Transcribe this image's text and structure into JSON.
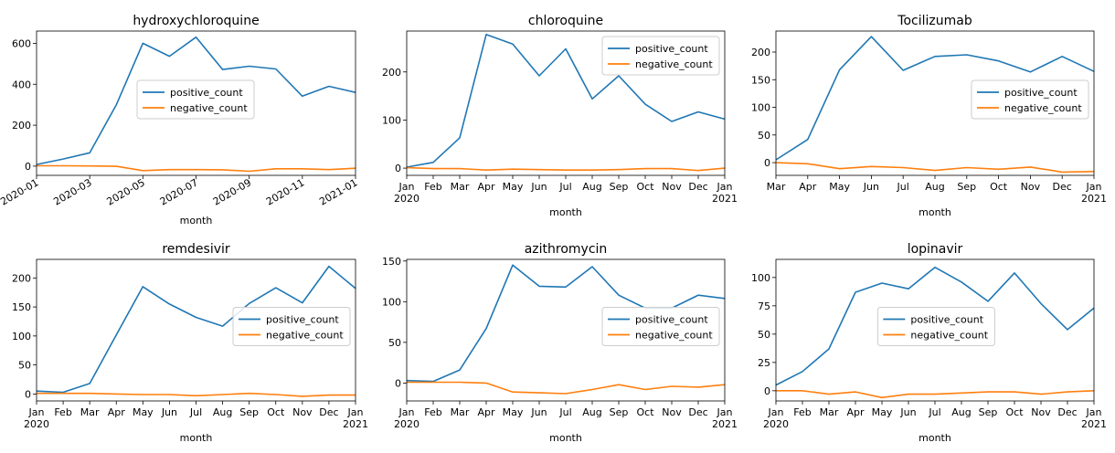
{
  "colors": {
    "positive": "#1f77b4",
    "negative": "#ff7f0e"
  },
  "legend_labels": [
    "positive_count",
    "negative_count"
  ],
  "chart_data": [
    {
      "type": "line",
      "title": "hydroxychloroquine",
      "xlabel": "month",
      "x": [
        0,
        1,
        2,
        3,
        4,
        5,
        6,
        7,
        8,
        9,
        10,
        11,
        12
      ],
      "xlim": [
        0,
        12
      ],
      "ylim": [
        -45,
        660
      ],
      "yticks": [
        0,
        200,
        400,
        600
      ],
      "xticks": [
        {
          "v": 0,
          "label": "2020-01"
        },
        {
          "v": 2,
          "label": "2020-03"
        },
        {
          "v": 4,
          "label": "2020-05"
        },
        {
          "v": 6,
          "label": "2020-07"
        },
        {
          "v": 8,
          "label": "2020-09"
        },
        {
          "v": 10,
          "label": "2020-11"
        },
        {
          "v": 12,
          "label": "2021-01"
        }
      ],
      "series": [
        {
          "name": "positive_count",
          "values": [
            8,
            35,
            65,
            300,
            600,
            537,
            630,
            472,
            488,
            475,
            342,
            390,
            360
          ]
        },
        {
          "name": "negative_count",
          "values": [
            2,
            2,
            1,
            -1,
            -22,
            -17,
            -17,
            -18,
            -25,
            -13,
            -13,
            -17,
            -10
          ]
        }
      ],
      "legend": "center-right"
    },
    {
      "type": "line",
      "title": "chloroquine",
      "xlabel": "month",
      "x": [
        0,
        1,
        2,
        3,
        4,
        5,
        6,
        7,
        8,
        9,
        10,
        11,
        12
      ],
      "xlim": [
        0,
        12
      ],
      "ylim": [
        -15,
        285
      ],
      "yticks": [
        0,
        100,
        200
      ],
      "xticks": [
        {
          "v": 0,
          "label": "Jan",
          "sub": "2020"
        },
        {
          "v": 1,
          "label": "Feb"
        },
        {
          "v": 2,
          "label": "Mar"
        },
        {
          "v": 3,
          "label": "Apr"
        },
        {
          "v": 4,
          "label": "May"
        },
        {
          "v": 5,
          "label": "Jun"
        },
        {
          "v": 6,
          "label": "Jul"
        },
        {
          "v": 7,
          "label": "Aug"
        },
        {
          "v": 8,
          "label": "Sep"
        },
        {
          "v": 9,
          "label": "Oct"
        },
        {
          "v": 10,
          "label": "Nov"
        },
        {
          "v": 11,
          "label": "Dec"
        },
        {
          "v": 12,
          "label": "Jan",
          "sub": "2021"
        }
      ],
      "series": [
        {
          "name": "positive_count",
          "values": [
            2,
            12,
            63,
            278,
            258,
            192,
            248,
            144,
            192,
            133,
            97,
            117,
            102
          ]
        },
        {
          "name": "negative_count",
          "values": [
            1,
            -1,
            -1,
            -4,
            -2,
            -3,
            -4,
            -4,
            -3,
            -1,
            -1,
            -5,
            0
          ]
        }
      ],
      "legend": "top-right"
    },
    {
      "type": "line",
      "title": "Tocilizumab",
      "xlabel": "month",
      "x": [
        2,
        3,
        4,
        5,
        6,
        7,
        8,
        9,
        10,
        11,
        12
      ],
      "xlim": [
        2,
        12
      ],
      "ylim": [
        -23,
        238
      ],
      "yticks": [
        0,
        50,
        100,
        150,
        200
      ],
      "xticks": [
        {
          "v": 2,
          "label": "Mar"
        },
        {
          "v": 3,
          "label": "Apr"
        },
        {
          "v": 4,
          "label": "May"
        },
        {
          "v": 5,
          "label": "Jun"
        },
        {
          "v": 6,
          "label": "Jul"
        },
        {
          "v": 7,
          "label": "Aug"
        },
        {
          "v": 8,
          "label": "Sep"
        },
        {
          "v": 9,
          "label": "Oct"
        },
        {
          "v": 10,
          "label": "Nov"
        },
        {
          "v": 11,
          "label": "Dec"
        },
        {
          "v": 12,
          "label": "Jan",
          "sub": "2021"
        }
      ],
      "series": [
        {
          "name": "positive_count",
          "values": [
            5,
            42,
            168,
            228,
            167,
            192,
            195,
            184,
            164,
            192,
            165
          ]
        },
        {
          "name": "negative_count",
          "values": [
            0,
            -2,
            -11,
            -7,
            -9,
            -14,
            -9,
            -12,
            -8,
            -17,
            -16
          ]
        }
      ],
      "legend": "center-right"
    },
    {
      "type": "line",
      "title": "remdesivir",
      "xlabel": "month",
      "x": [
        0,
        1,
        2,
        3,
        4,
        5,
        6,
        7,
        8,
        9,
        10,
        11,
        12
      ],
      "xlim": [
        0,
        12
      ],
      "ylim": [
        -12,
        232
      ],
      "yticks": [
        0,
        50,
        100,
        150,
        200
      ],
      "xticks": [
        {
          "v": 0,
          "label": "Jan",
          "sub": "2020"
        },
        {
          "v": 1,
          "label": "Feb"
        },
        {
          "v": 2,
          "label": "Mar"
        },
        {
          "v": 3,
          "label": "Apr"
        },
        {
          "v": 4,
          "label": "May"
        },
        {
          "v": 5,
          "label": "Jun"
        },
        {
          "v": 6,
          "label": "Jul"
        },
        {
          "v": 7,
          "label": "Aug"
        },
        {
          "v": 8,
          "label": "Sep"
        },
        {
          "v": 9,
          "label": "Oct"
        },
        {
          "v": 10,
          "label": "Nov"
        },
        {
          "v": 11,
          "label": "Dec"
        },
        {
          "v": 12,
          "label": "Jan",
          "sub": "2021"
        }
      ],
      "series": [
        {
          "name": "positive_count",
          "values": [
            5,
            3,
            18,
            102,
            185,
            155,
            132,
            117,
            156,
            183,
            157,
            220,
            182
          ]
        },
        {
          "name": "negative_count",
          "values": [
            1,
            1,
            1,
            0,
            -1,
            -1,
            -3,
            -1,
            1,
            -1,
            -4,
            -2,
            -2
          ]
        }
      ],
      "legend": "center-right"
    },
    {
      "type": "line",
      "title": "azithromycin",
      "xlabel": "month",
      "x": [
        0,
        1,
        2,
        3,
        4,
        5,
        6,
        7,
        8,
        9,
        10,
        11,
        12
      ],
      "xlim": [
        0,
        12
      ],
      "ylim": [
        -22,
        152
      ],
      "yticks": [
        0,
        50,
        100,
        150
      ],
      "xticks": [
        {
          "v": 0,
          "label": "Jan",
          "sub": "2020"
        },
        {
          "v": 1,
          "label": "Feb"
        },
        {
          "v": 2,
          "label": "Mar"
        },
        {
          "v": 3,
          "label": "Apr"
        },
        {
          "v": 4,
          "label": "May"
        },
        {
          "v": 5,
          "label": "Jun"
        },
        {
          "v": 6,
          "label": "Jul"
        },
        {
          "v": 7,
          "label": "Aug"
        },
        {
          "v": 8,
          "label": "Sep"
        },
        {
          "v": 9,
          "label": "Oct"
        },
        {
          "v": 10,
          "label": "Nov"
        },
        {
          "v": 11,
          "label": "Dec"
        },
        {
          "v": 12,
          "label": "Jan",
          "sub": "2021"
        }
      ],
      "series": [
        {
          "name": "positive_count",
          "values": [
            3,
            2,
            16,
            67,
            145,
            119,
            118,
            143,
            108,
            92,
            92,
            108,
            104
          ]
        },
        {
          "name": "negative_count",
          "values": [
            1,
            1,
            1,
            0,
            -11,
            -12,
            -13,
            -8,
            -2,
            -8,
            -4,
            -5,
            -2
          ]
        }
      ],
      "legend": "center-right"
    },
    {
      "type": "line",
      "title": "lopinavir",
      "xlabel": "month",
      "x": [
        0,
        1,
        2,
        3,
        4,
        5,
        6,
        7,
        8,
        9,
        10,
        11,
        12
      ],
      "xlim": [
        0,
        12
      ],
      "ylim": [
        -9,
        116
      ],
      "yticks": [
        0,
        25,
        50,
        75,
        100
      ],
      "xticks": [
        {
          "v": 0,
          "label": "Jan",
          "sub": "2020"
        },
        {
          "v": 1,
          "label": "Feb"
        },
        {
          "v": 2,
          "label": "Mar"
        },
        {
          "v": 3,
          "label": "Apr"
        },
        {
          "v": 4,
          "label": "May"
        },
        {
          "v": 5,
          "label": "Jun"
        },
        {
          "v": 6,
          "label": "Jul"
        },
        {
          "v": 7,
          "label": "Aug"
        },
        {
          "v": 8,
          "label": "Sep"
        },
        {
          "v": 9,
          "label": "Oct"
        },
        {
          "v": 10,
          "label": "Nov"
        },
        {
          "v": 11,
          "label": "Dec"
        },
        {
          "v": 12,
          "label": "Jan",
          "sub": "2021"
        }
      ],
      "series": [
        {
          "name": "positive_count",
          "values": [
            5,
            17,
            37,
            87,
            95,
            90,
            109,
            96,
            79,
            104,
            77,
            54,
            73
          ]
        },
        {
          "name": "negative_count",
          "values": [
            0,
            0,
            -3,
            -1,
            -6,
            -3,
            -3,
            -2,
            -1,
            -1,
            -3,
            -1,
            0
          ]
        }
      ],
      "legend": "center-left"
    }
  ]
}
